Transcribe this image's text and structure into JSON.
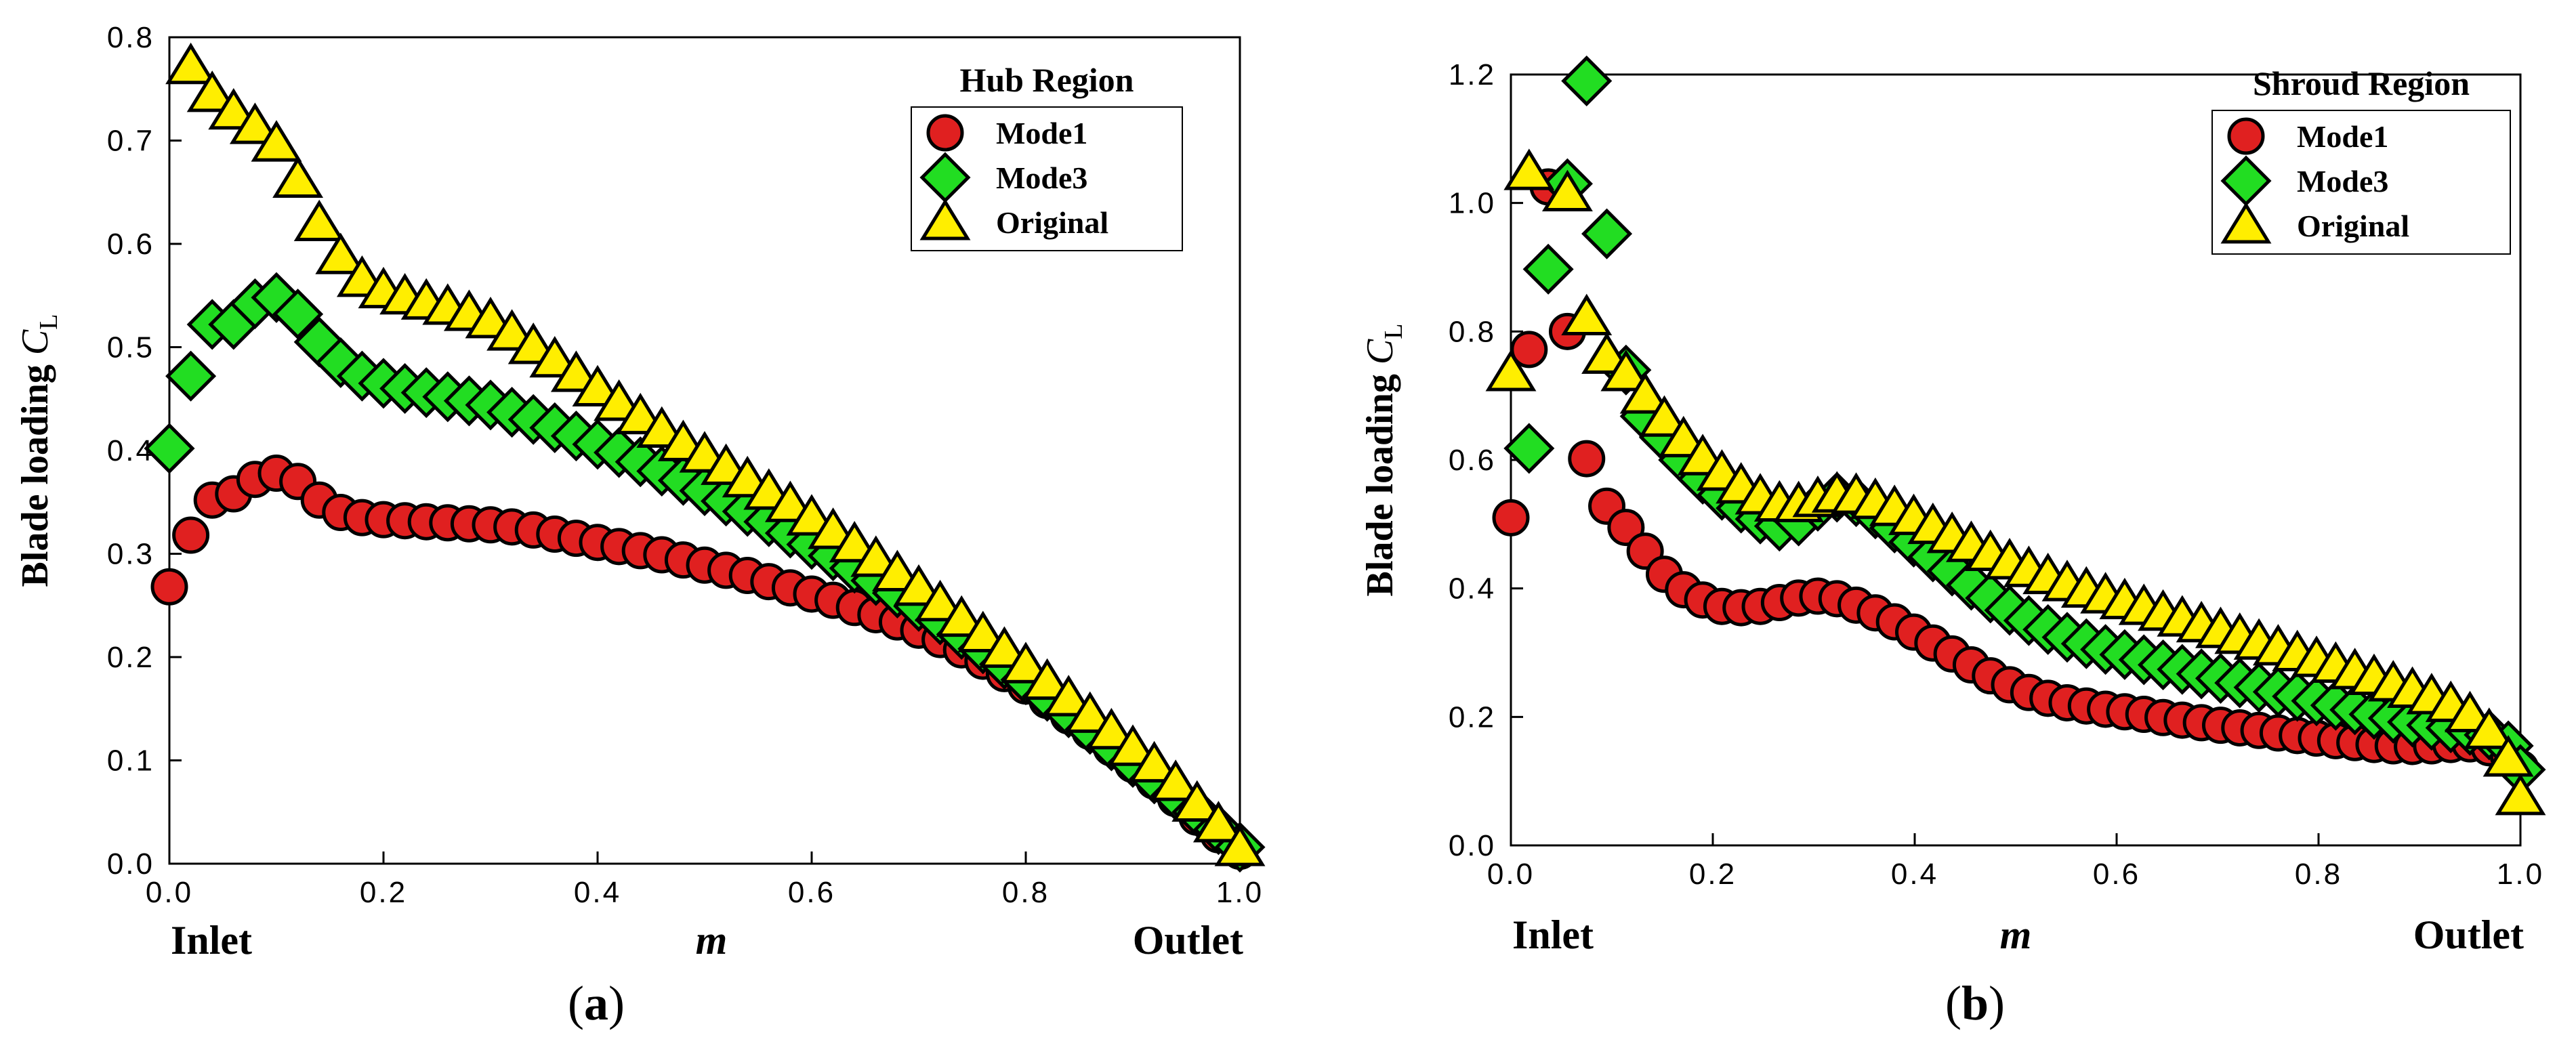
{
  "chart_data": [
    {
      "type": "scatter",
      "panel_label": "a",
      "legend_title": "Hub Region",
      "ylabel_text": "Blade loading ",
      "ylabel_symbol": "C",
      "ylabel_subscript": "L",
      "xlabel": "m",
      "inlet_label": "Inlet",
      "outlet_label": "Outlet",
      "xlim": [
        0.0,
        1.0
      ],
      "ylim": [
        0.0,
        0.8
      ],
      "x_ticks": [
        "0.0",
        "0.2",
        "0.4",
        "0.6",
        "0.8",
        "1.0"
      ],
      "y_ticks": [
        "0.0",
        "0.1",
        "0.2",
        "0.3",
        "0.4",
        "0.5",
        "0.6",
        "0.7",
        "0.8"
      ],
      "grid": false,
      "legend_position": "top-right",
      "series": [
        {
          "name": "Mode1",
          "marker": "circle",
          "color": "#e02020",
          "x": [
            0.0,
            0.02,
            0.04,
            0.06,
            0.08,
            0.1,
            0.12,
            0.14,
            0.16,
            0.18,
            0.2,
            0.22,
            0.24,
            0.26,
            0.28,
            0.3,
            0.32,
            0.34,
            0.36,
            0.38,
            0.4,
            0.42,
            0.44,
            0.46,
            0.48,
            0.5,
            0.52,
            0.54,
            0.56,
            0.58,
            0.6,
            0.62,
            0.64,
            0.66,
            0.68,
            0.7,
            0.72,
            0.74,
            0.76,
            0.78,
            0.8,
            0.82,
            0.84,
            0.86,
            0.88,
            0.9,
            0.92,
            0.94,
            0.96,
            0.98,
            1.0
          ],
          "y": [
            0.268,
            0.318,
            0.352,
            0.358,
            0.372,
            0.378,
            0.37,
            0.352,
            0.34,
            0.335,
            0.333,
            0.332,
            0.331,
            0.33,
            0.329,
            0.328,
            0.326,
            0.323,
            0.319,
            0.315,
            0.311,
            0.307,
            0.303,
            0.299,
            0.294,
            0.289,
            0.284,
            0.279,
            0.273,
            0.267,
            0.261,
            0.255,
            0.248,
            0.241,
            0.234,
            0.226,
            0.217,
            0.207,
            0.196,
            0.184,
            0.172,
            0.158,
            0.143,
            0.128,
            0.112,
            0.096,
            0.08,
            0.063,
            0.045,
            0.028,
            0.012
          ]
        },
        {
          "name": "Mode3",
          "marker": "diamond",
          "color": "#22dd22",
          "x": [
            0.0,
            0.02,
            0.04,
            0.06,
            0.08,
            0.1,
            0.12,
            0.14,
            0.16,
            0.18,
            0.2,
            0.22,
            0.24,
            0.26,
            0.28,
            0.3,
            0.32,
            0.34,
            0.36,
            0.38,
            0.4,
            0.42,
            0.44,
            0.46,
            0.48,
            0.5,
            0.52,
            0.54,
            0.56,
            0.58,
            0.6,
            0.62,
            0.64,
            0.66,
            0.68,
            0.7,
            0.72,
            0.74,
            0.76,
            0.78,
            0.8,
            0.82,
            0.84,
            0.86,
            0.88,
            0.9,
            0.92,
            0.94,
            0.96,
            0.98,
            1.0
          ],
          "y": [
            0.402,
            0.472,
            0.522,
            0.522,
            0.542,
            0.548,
            0.532,
            0.505,
            0.485,
            0.472,
            0.465,
            0.46,
            0.456,
            0.452,
            0.448,
            0.444,
            0.437,
            0.43,
            0.422,
            0.414,
            0.406,
            0.398,
            0.389,
            0.38,
            0.371,
            0.361,
            0.351,
            0.341,
            0.331,
            0.32,
            0.309,
            0.298,
            0.286,
            0.274,
            0.262,
            0.249,
            0.236,
            0.222,
            0.208,
            0.193,
            0.178,
            0.162,
            0.146,
            0.13,
            0.114,
            0.098,
            0.082,
            0.066,
            0.05,
            0.033,
            0.016
          ]
        },
        {
          "name": "Original",
          "marker": "triangle",
          "color": "#ffee00",
          "x": [
            0.02,
            0.04,
            0.06,
            0.08,
            0.1,
            0.12,
            0.14,
            0.16,
            0.18,
            0.2,
            0.22,
            0.24,
            0.26,
            0.28,
            0.3,
            0.32,
            0.34,
            0.36,
            0.38,
            0.4,
            0.42,
            0.44,
            0.46,
            0.48,
            0.5,
            0.52,
            0.54,
            0.56,
            0.58,
            0.6,
            0.62,
            0.64,
            0.66,
            0.68,
            0.7,
            0.72,
            0.74,
            0.76,
            0.78,
            0.8,
            0.82,
            0.84,
            0.86,
            0.88,
            0.9,
            0.92,
            0.94,
            0.96,
            0.98,
            1.0
          ],
          "y": [
            0.772,
            0.745,
            0.728,
            0.714,
            0.697,
            0.662,
            0.62,
            0.588,
            0.566,
            0.555,
            0.549,
            0.544,
            0.539,
            0.533,
            0.526,
            0.514,
            0.501,
            0.488,
            0.474,
            0.46,
            0.446,
            0.433,
            0.42,
            0.407,
            0.396,
            0.384,
            0.372,
            0.36,
            0.348,
            0.335,
            0.322,
            0.309,
            0.295,
            0.281,
            0.267,
            0.252,
            0.237,
            0.222,
            0.207,
            0.192,
            0.176,
            0.16,
            0.144,
            0.128,
            0.112,
            0.096,
            0.078,
            0.058,
            0.038,
            0.015
          ]
        }
      ]
    },
    {
      "type": "scatter",
      "panel_label": "b",
      "legend_title": "Shroud Region",
      "ylabel_text": "Blade loading ",
      "ylabel_symbol": "C",
      "ylabel_subscript": "L",
      "xlabel": "m",
      "inlet_label": "Inlet",
      "outlet_label": "Outlet",
      "xlim": [
        0.0,
        1.0
      ],
      "ylim": [
        0.0,
        1.2
      ],
      "x_ticks": [
        "0.0",
        "0.2",
        "0.4",
        "0.6",
        "0.8",
        "1.0"
      ],
      "y_ticks": [
        "0.0",
        "0.2",
        "0.4",
        "0.6",
        "0.8",
        "1.0",
        "1.2"
      ],
      "grid": false,
      "legend_position": "top-right",
      "series": [
        {
          "name": "Mode1",
          "marker": "circle",
          "color": "#e02020",
          "x": [
            0.0,
            0.018,
            0.037,
            0.056,
            0.075,
            0.095,
            0.114,
            0.133,
            0.152,
            0.171,
            0.19,
            0.209,
            0.228,
            0.247,
            0.266,
            0.285,
            0.304,
            0.323,
            0.342,
            0.361,
            0.38,
            0.399,
            0.418,
            0.437,
            0.456,
            0.475,
            0.494,
            0.513,
            0.532,
            0.551,
            0.57,
            0.589,
            0.608,
            0.627,
            0.646,
            0.665,
            0.684,
            0.703,
            0.722,
            0.741,
            0.76,
            0.779,
            0.798,
            0.817,
            0.836,
            0.855,
            0.874,
            0.893,
            0.912,
            0.931,
            0.95,
            0.969,
            0.988,
            1.0
          ],
          "y": [
            0.51,
            0.772,
            1.025,
            0.8,
            0.602,
            0.528,
            0.495,
            0.458,
            0.422,
            0.398,
            0.382,
            0.372,
            0.37,
            0.372,
            0.378,
            0.385,
            0.388,
            0.384,
            0.374,
            0.362,
            0.348,
            0.332,
            0.315,
            0.298,
            0.281,
            0.264,
            0.25,
            0.238,
            0.229,
            0.222,
            0.217,
            0.212,
            0.208,
            0.204,
            0.199,
            0.195,
            0.191,
            0.187,
            0.183,
            0.179,
            0.175,
            0.171,
            0.167,
            0.163,
            0.16,
            0.157,
            0.155,
            0.154,
            0.155,
            0.157,
            0.158,
            0.152,
            0.14,
            0.12
          ]
        },
        {
          "name": "Mode3",
          "marker": "diamond",
          "color": "#22dd22",
          "x": [
            0.018,
            0.037,
            0.056,
            0.075,
            0.095,
            0.114,
            0.133,
            0.152,
            0.171,
            0.19,
            0.209,
            0.228,
            0.247,
            0.266,
            0.285,
            0.304,
            0.323,
            0.342,
            0.361,
            0.38,
            0.399,
            0.418,
            0.437,
            0.456,
            0.475,
            0.494,
            0.513,
            0.532,
            0.551,
            0.57,
            0.589,
            0.608,
            0.627,
            0.646,
            0.665,
            0.684,
            0.703,
            0.722,
            0.741,
            0.76,
            0.779,
            0.798,
            0.817,
            0.836,
            0.855,
            0.874,
            0.893,
            0.912,
            0.931,
            0.95,
            0.969,
            0.988,
            1.0
          ],
          "y": [
            0.618,
            0.897,
            1.03,
            1.19,
            0.952,
            0.74,
            0.668,
            0.635,
            0.6,
            0.57,
            0.545,
            0.525,
            0.508,
            0.497,
            0.505,
            0.528,
            0.542,
            0.535,
            0.516,
            0.494,
            0.472,
            0.449,
            0.427,
            0.405,
            0.385,
            0.366,
            0.35,
            0.336,
            0.324,
            0.314,
            0.305,
            0.297,
            0.289,
            0.281,
            0.274,
            0.267,
            0.26,
            0.253,
            0.246,
            0.239,
            0.232,
            0.225,
            0.218,
            0.211,
            0.204,
            0.198,
            0.192,
            0.187,
            0.183,
            0.179,
            0.172,
            0.155,
            0.118
          ]
        },
        {
          "name": "Original",
          "marker": "triangle",
          "color": "#ffee00",
          "x": [
            0.0,
            0.018,
            0.056,
            0.075,
            0.095,
            0.114,
            0.133,
            0.152,
            0.171,
            0.19,
            0.209,
            0.228,
            0.247,
            0.266,
            0.285,
            0.304,
            0.323,
            0.342,
            0.361,
            0.38,
            0.399,
            0.418,
            0.437,
            0.456,
            0.475,
            0.494,
            0.513,
            0.532,
            0.551,
            0.57,
            0.589,
            0.608,
            0.627,
            0.646,
            0.665,
            0.684,
            0.703,
            0.722,
            0.741,
            0.76,
            0.779,
            0.798,
            0.817,
            0.836,
            0.855,
            0.874,
            0.893,
            0.912,
            0.931,
            0.95,
            0.969,
            0.988,
            1.0
          ],
          "y": [
            0.735,
            1.048,
            1.015,
            0.822,
            0.762,
            0.735,
            0.7,
            0.664,
            0.632,
            0.604,
            0.58,
            0.56,
            0.543,
            0.532,
            0.531,
            0.539,
            0.546,
            0.544,
            0.536,
            0.525,
            0.511,
            0.497,
            0.483,
            0.469,
            0.455,
            0.442,
            0.43,
            0.419,
            0.408,
            0.398,
            0.389,
            0.38,
            0.371,
            0.362,
            0.353,
            0.344,
            0.335,
            0.326,
            0.317,
            0.308,
            0.299,
            0.29,
            0.281,
            0.271,
            0.262,
            0.252,
            0.242,
            0.232,
            0.22,
            0.204,
            0.178,
            0.135,
            0.075
          ]
        }
      ]
    }
  ]
}
